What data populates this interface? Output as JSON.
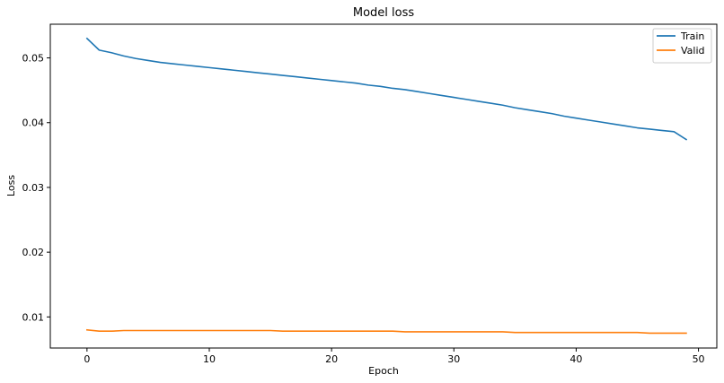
{
  "chart_data": {
    "type": "line",
    "title": "Model loss",
    "xlabel": "Epoch",
    "ylabel": "Loss",
    "xlim": [
      -3.0,
      51.5
    ],
    "ylim": [
      0.0052,
      0.0552
    ],
    "xticks": [
      0,
      10,
      20,
      30,
      40,
      50
    ],
    "yticks": [
      0.01,
      0.02,
      0.03,
      0.04,
      0.05
    ],
    "xtick_labels": [
      "0",
      "10",
      "20",
      "30",
      "40",
      "50"
    ],
    "ytick_labels": [
      "0.01",
      "0.02",
      "0.03",
      "0.04",
      "0.05"
    ],
    "grid": false,
    "legend_position": "top-right",
    "x": [
      0,
      1,
      2,
      3,
      4,
      5,
      6,
      7,
      8,
      9,
      10,
      11,
      12,
      13,
      14,
      15,
      16,
      17,
      18,
      19,
      20,
      21,
      22,
      23,
      24,
      25,
      26,
      27,
      28,
      29,
      30,
      31,
      32,
      33,
      34,
      35,
      36,
      37,
      38,
      39,
      40,
      41,
      42,
      43,
      44,
      45,
      46,
      47,
      48,
      49
    ],
    "series": [
      {
        "name": "Train",
        "color": "#1f77b4",
        "values": [
          0.053,
          0.0512,
          0.0508,
          0.0503,
          0.0499,
          0.0496,
          0.0493,
          0.0491,
          0.0489,
          0.0487,
          0.0485,
          0.0483,
          0.0481,
          0.0479,
          0.0477,
          0.0475,
          0.0473,
          0.0471,
          0.0469,
          0.0467,
          0.0465,
          0.0463,
          0.0461,
          0.0458,
          0.0456,
          0.0453,
          0.0451,
          0.0448,
          0.0445,
          0.0442,
          0.0439,
          0.0436,
          0.0433,
          0.043,
          0.0427,
          0.0423,
          0.042,
          0.0417,
          0.0414,
          0.041,
          0.0407,
          0.0404,
          0.0401,
          0.0398,
          0.0395,
          0.0392,
          0.039,
          0.0388,
          0.0386,
          0.0374
        ]
      },
      {
        "name": "Valid",
        "color": "#ff7f0e",
        "values": [
          0.008,
          0.0078,
          0.0078,
          0.0079,
          0.0079,
          0.0079,
          0.0079,
          0.0079,
          0.0079,
          0.0079,
          0.0079,
          0.0079,
          0.0079,
          0.0079,
          0.0079,
          0.0079,
          0.0078,
          0.0078,
          0.0078,
          0.0078,
          0.0078,
          0.0078,
          0.0078,
          0.0078,
          0.0078,
          0.0078,
          0.0077,
          0.0077,
          0.0077,
          0.0077,
          0.0077,
          0.0077,
          0.0077,
          0.0077,
          0.0077,
          0.0076,
          0.0076,
          0.0076,
          0.0076,
          0.0076,
          0.0076,
          0.0076,
          0.0076,
          0.0076,
          0.0076,
          0.0076,
          0.0075,
          0.0075,
          0.0075,
          0.0075
        ]
      }
    ]
  }
}
